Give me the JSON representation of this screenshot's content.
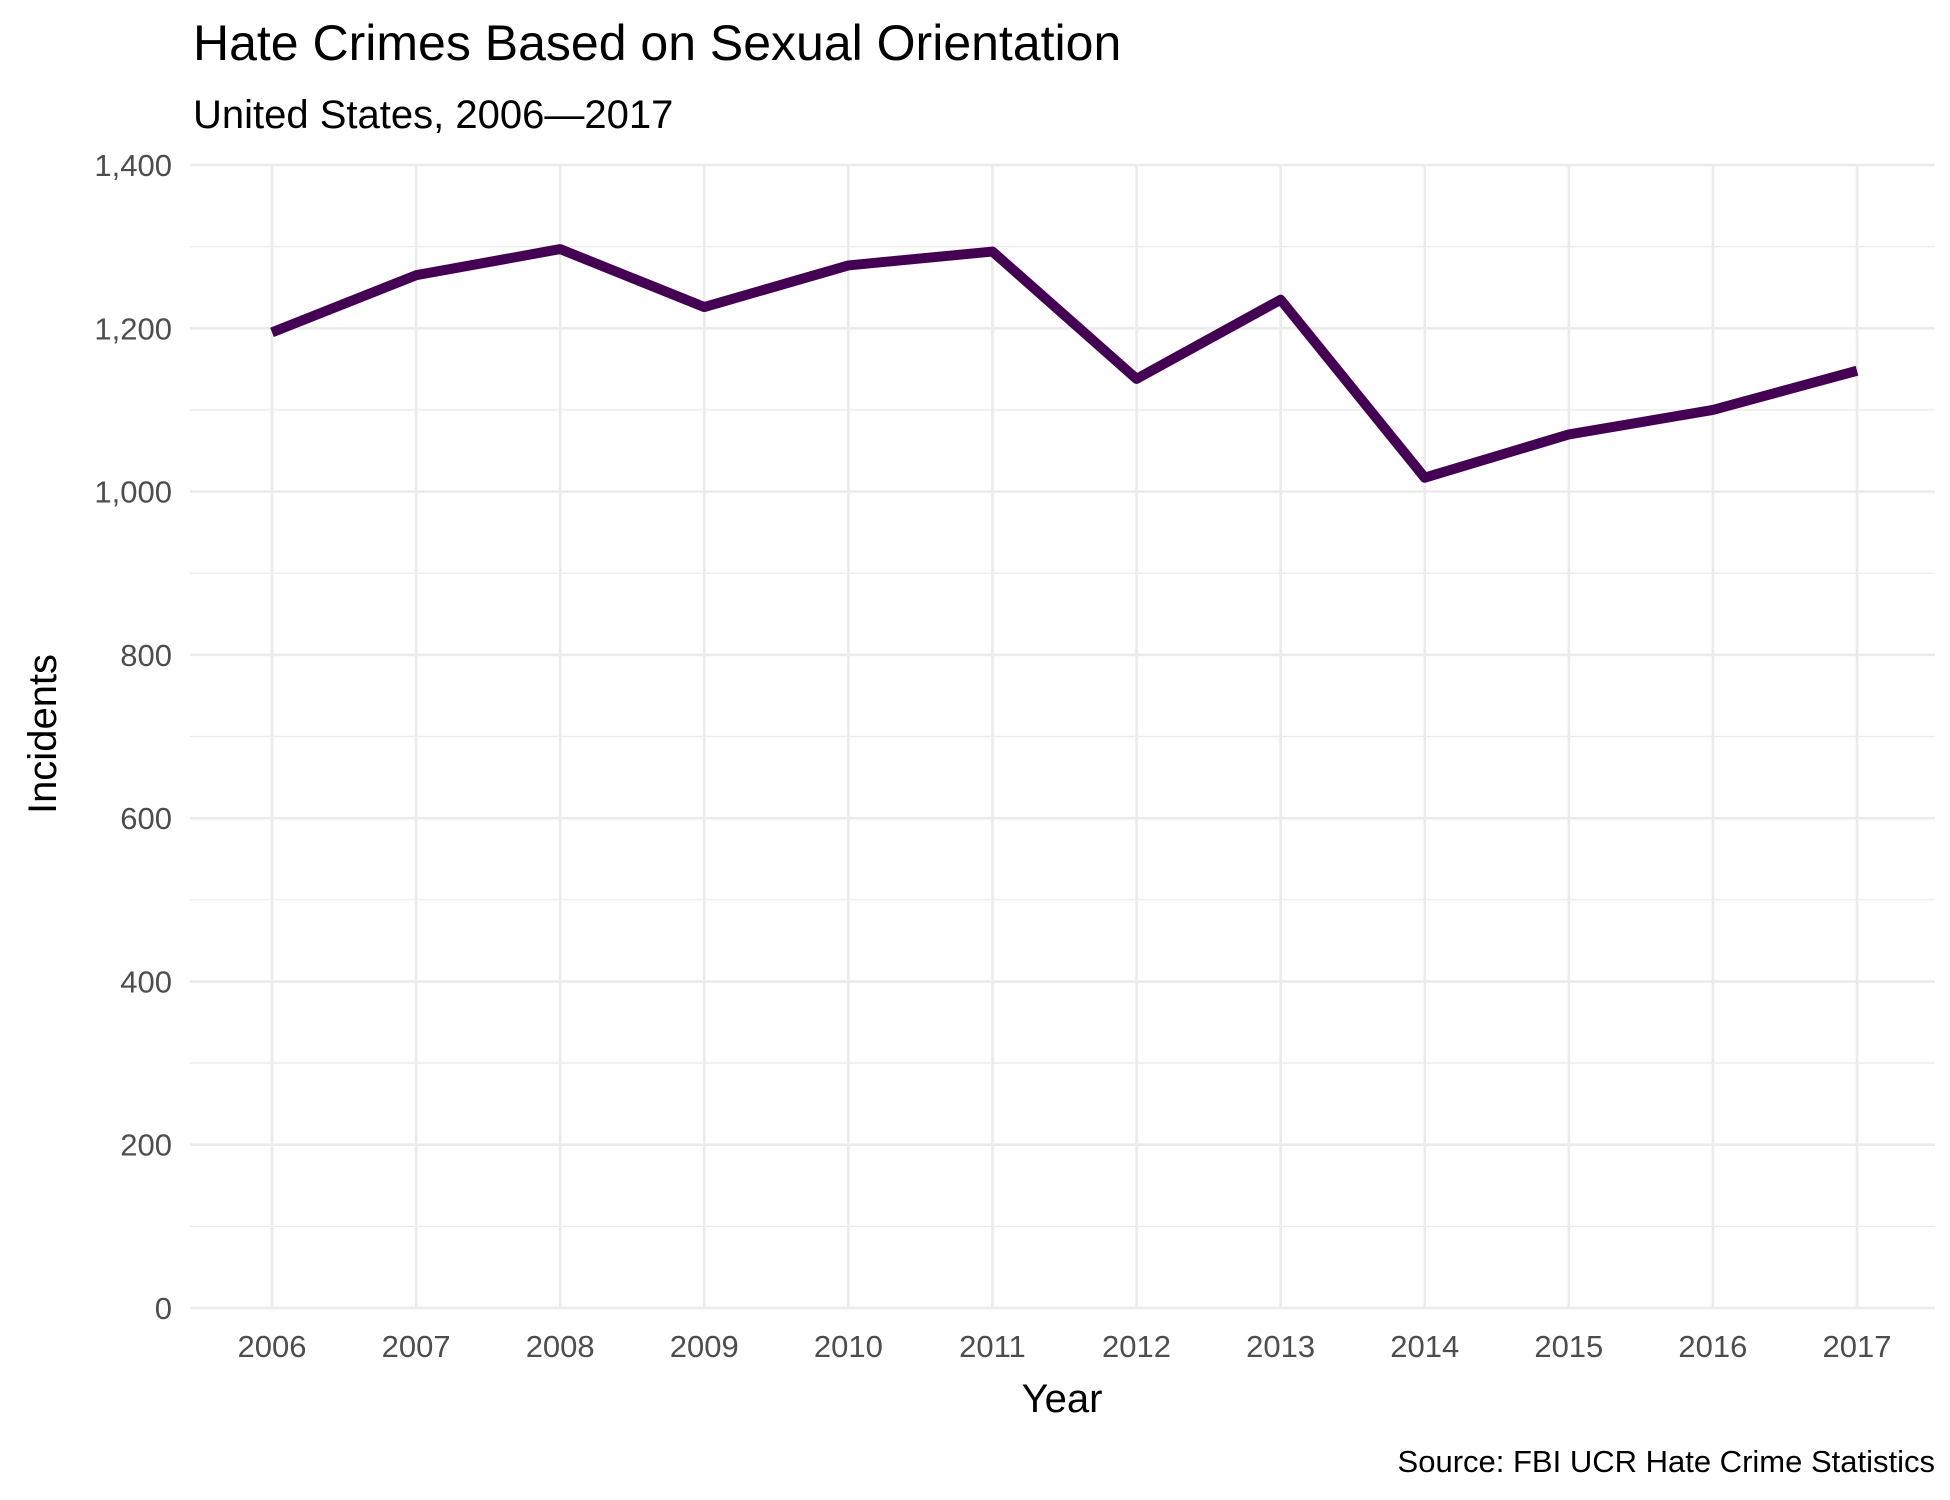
{
  "chart_data": {
    "type": "line",
    "title": "Hate Crimes Based on Sexual Orientation",
    "subtitle": "United States, 2006—2017",
    "xlabel": "Year",
    "ylabel": "Incidents",
    "caption": "Source: FBI UCR Hate Crime Statistics",
    "x": [
      2006,
      2007,
      2008,
      2009,
      2010,
      2011,
      2012,
      2013,
      2014,
      2015,
      2016,
      2017
    ],
    "series": [
      {
        "values": [
          1195,
          1265,
          1297,
          1226,
          1277,
          1294,
          1138,
          1235,
          1017,
          1070,
          1100,
          1148
        ]
      }
    ],
    "ylim": [
      0,
      1400
    ],
    "y_ticks": [
      0,
      200,
      400,
      600,
      800,
      1000,
      1200,
      1400
    ],
    "y_tick_labels": [
      "0",
      "200",
      "400",
      "600",
      "800",
      "1,000",
      "1,200",
      "1,400"
    ],
    "x_tick_labels": [
      "2006",
      "2007",
      "2008",
      "2009",
      "2010",
      "2011",
      "2012",
      "2013",
      "2014",
      "2015",
      "2016",
      "2017"
    ],
    "grid": true,
    "legend": "none",
    "line_color": "#440154"
  }
}
